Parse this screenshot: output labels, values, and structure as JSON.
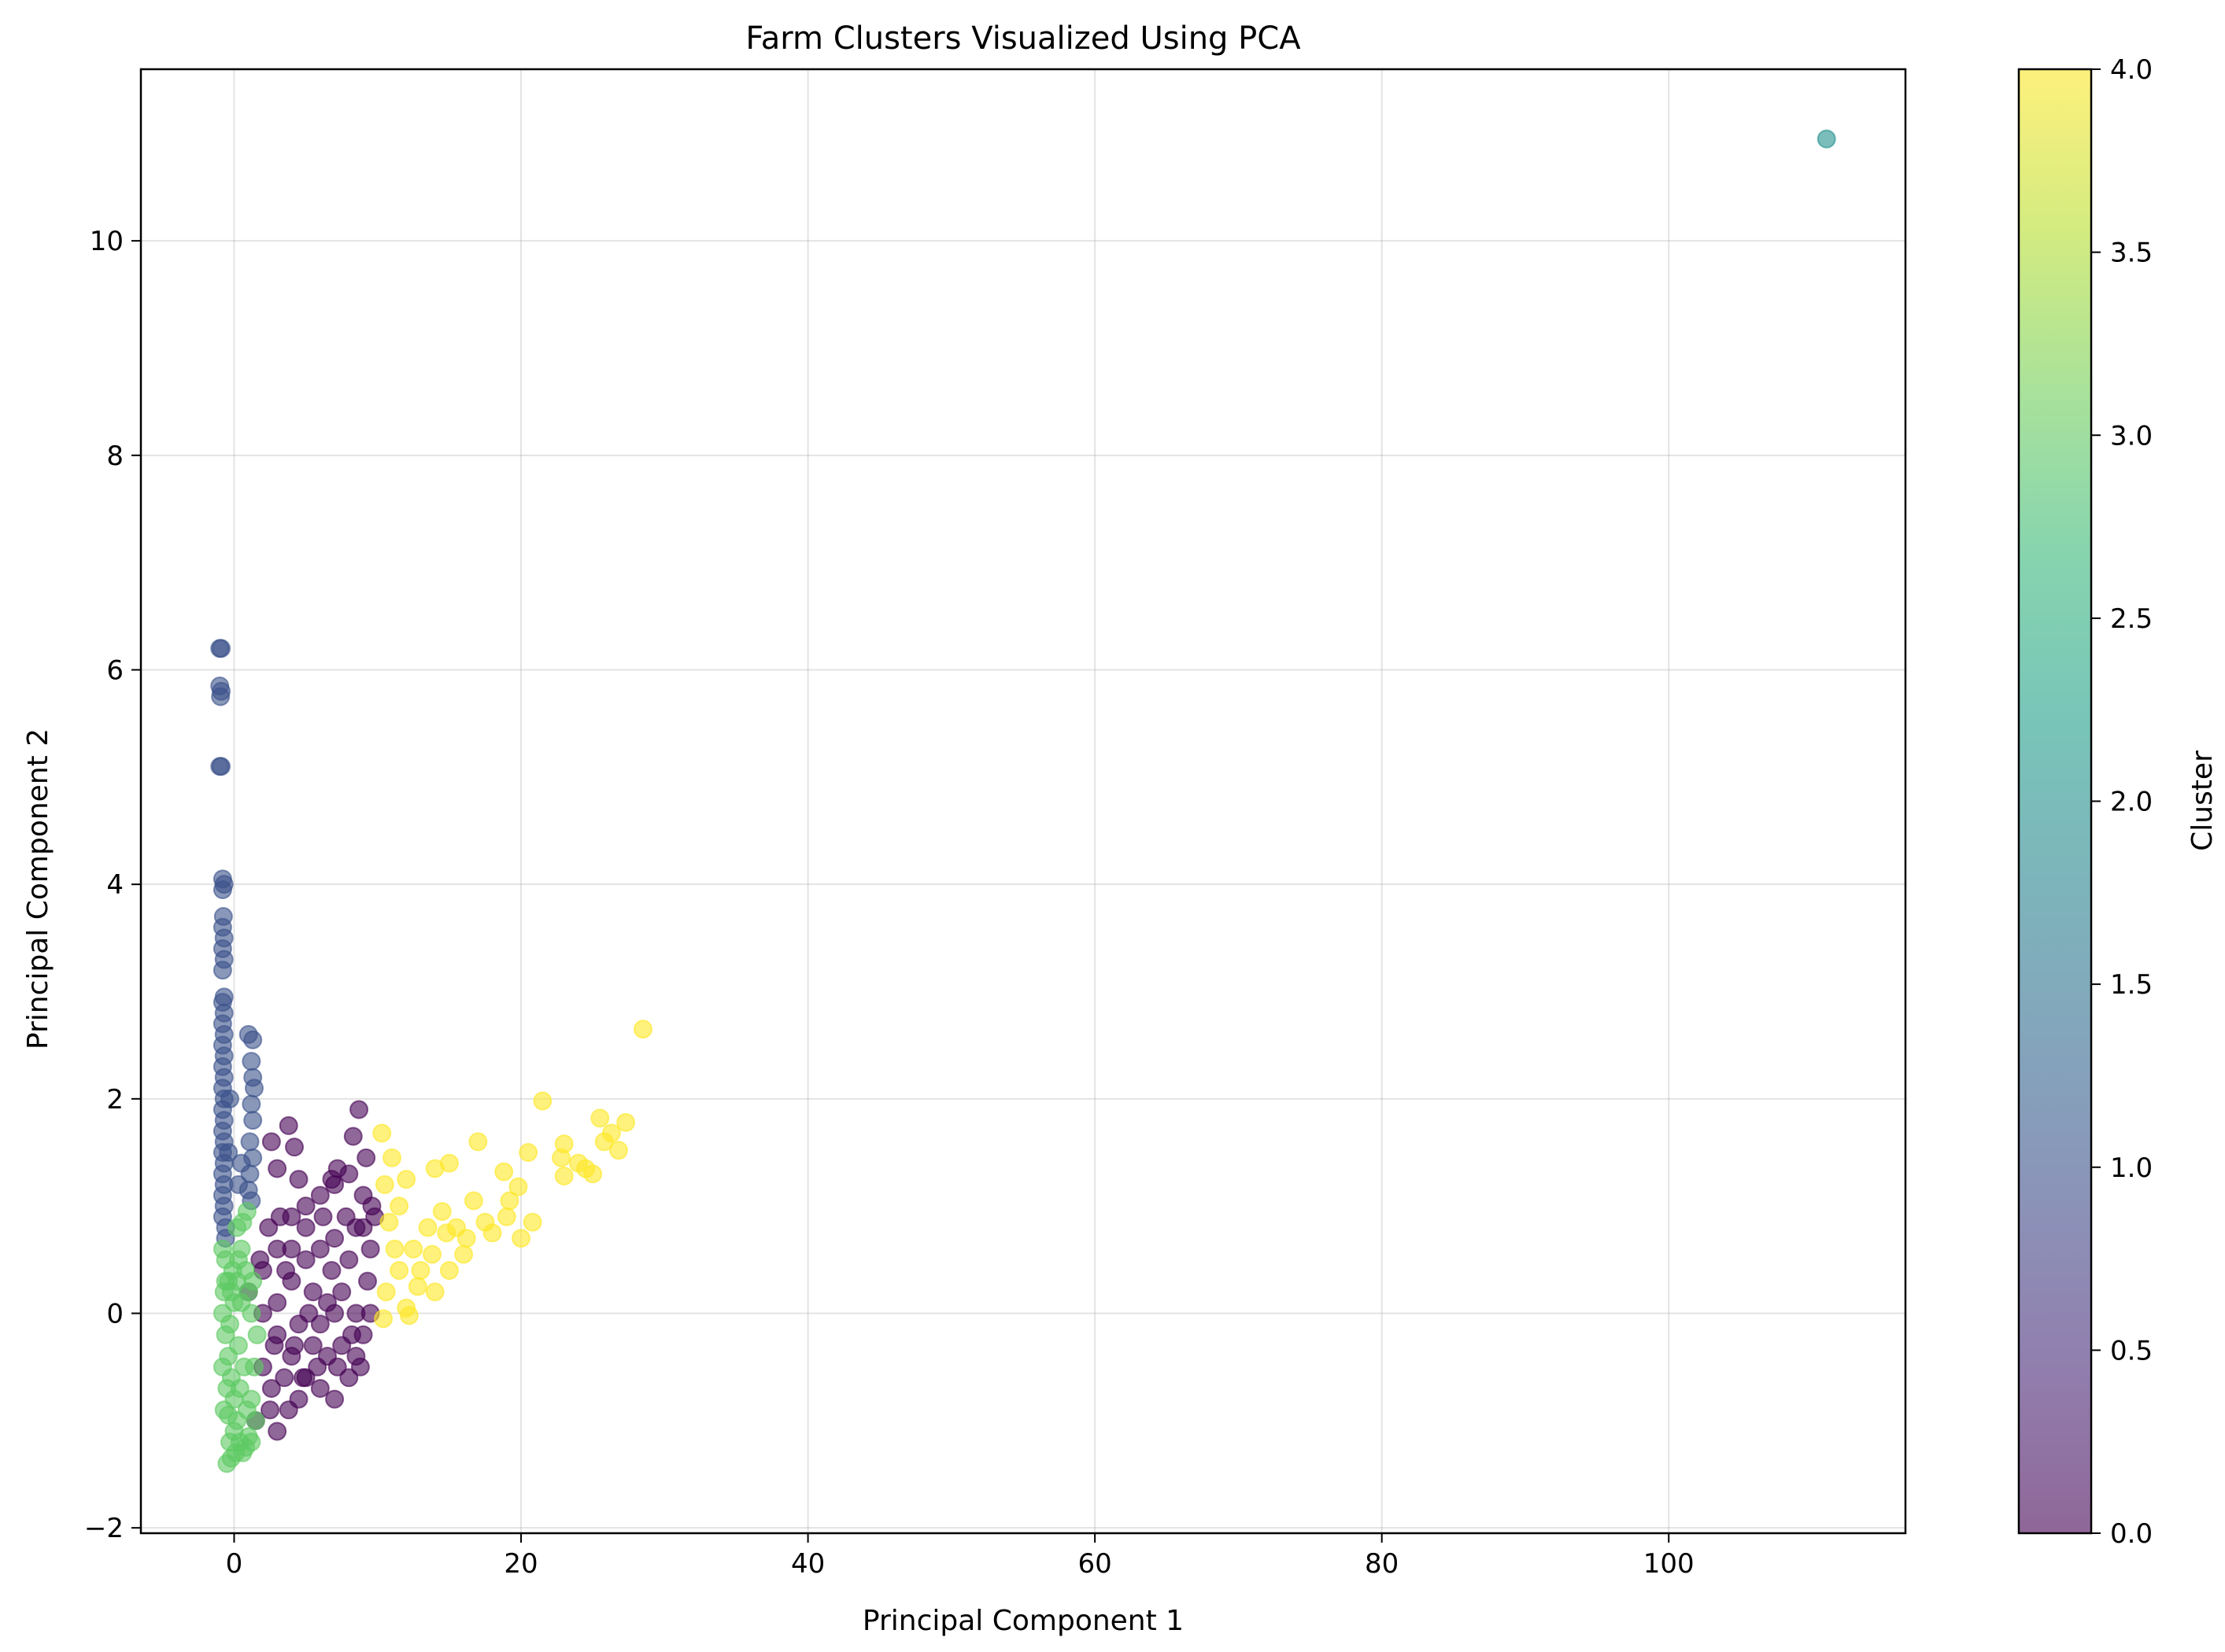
{
  "chart_data": {
    "type": "scatter",
    "title": "Farm Clusters Visualized Using PCA",
    "xlabel": "Principal Component 1",
    "ylabel": "Principal Component 2",
    "xlim": [
      -6.5,
      116.5
    ],
    "ylim": [
      -2.05,
      11.6
    ],
    "xticks": [
      0,
      20,
      40,
      60,
      80,
      100
    ],
    "xtick_labels": [
      "0",
      "20",
      "40",
      "60",
      "80",
      "100"
    ],
    "yticks": [
      -2,
      0,
      2,
      4,
      6,
      8,
      10
    ],
    "ytick_labels": [
      "−2",
      "0",
      "2",
      "4",
      "6",
      "8",
      "10"
    ],
    "grid": true,
    "point_alpha": 0.6,
    "colorbar": {
      "label": "Cluster",
      "range": [
        0.0,
        4.0
      ],
      "ticks": [
        0.0,
        0.5,
        1.0,
        1.5,
        2.0,
        2.5,
        3.0,
        3.5,
        4.0
      ],
      "tick_labels": [
        "0.0",
        "0.5",
        "1.0",
        "1.5",
        "2.0",
        "2.5",
        "3.0",
        "3.5",
        "4.0"
      ],
      "colormap": "viridis",
      "stops": [
        "#440154",
        "#482878",
        "#3e4989",
        "#31688e",
        "#26828e",
        "#1f9e89",
        "#35b779",
        "#6ece58",
        "#b5de2b",
        "#fde725"
      ]
    },
    "series": [
      {
        "cluster": 0,
        "color": "#440154",
        "points": [
          [
            1,
            0.2
          ],
          [
            2,
            0.4
          ],
          [
            3,
            0.6
          ],
          [
            4,
            0.9
          ],
          [
            5,
            1.0
          ],
          [
            6,
            1.1
          ],
          [
            7,
            1.2
          ],
          [
            8,
            1.3
          ],
          [
            9,
            1.1
          ],
          [
            8.5,
            0.8
          ],
          [
            3.8,
            1.75
          ],
          [
            4.2,
            1.55
          ],
          [
            4.5,
            1.25
          ],
          [
            2.6,
            1.6
          ],
          [
            8.3,
            1.65
          ],
          [
            7.2,
            1.35
          ],
          [
            6.8,
            1.25
          ],
          [
            8.7,
            1.9
          ],
          [
            9.2,
            1.45
          ],
          [
            3,
            1.35
          ],
          [
            2,
            0
          ],
          [
            3,
            -0.2
          ],
          [
            4,
            -0.4
          ],
          [
            5,
            -0.6
          ],
          [
            6,
            -0.7
          ],
          [
            7,
            -0.8
          ],
          [
            8,
            -0.6
          ],
          [
            8.5,
            -0.4
          ],
          [
            9,
            -0.2
          ],
          [
            9.5,
            0
          ],
          [
            3,
            0.1
          ],
          [
            4,
            0.3
          ],
          [
            5,
            0.5
          ],
          [
            6,
            0.6
          ],
          [
            7,
            0.7
          ],
          [
            8,
            0.5
          ],
          [
            9,
            0.8
          ],
          [
            9.5,
            0.6
          ],
          [
            5.5,
            0.2
          ],
          [
            6.5,
            0.1
          ],
          [
            7.5,
            0.2
          ],
          [
            8.5,
            0
          ],
          [
            4.5,
            -0.1
          ],
          [
            5.5,
            -0.3
          ],
          [
            6.5,
            -0.4
          ],
          [
            7.5,
            -0.3
          ],
          [
            3.5,
            -0.6
          ],
          [
            4.5,
            -0.8
          ],
          [
            2.5,
            -0.9
          ],
          [
            3,
            -1.1
          ],
          [
            1.5,
            -1.0
          ],
          [
            2,
            -0.5
          ],
          [
            6,
            -0.1
          ],
          [
            7,
            0
          ],
          [
            8.8,
            -0.5
          ],
          [
            9.3,
            0.3
          ],
          [
            9.8,
            0.9
          ],
          [
            5,
            0.8
          ],
          [
            4,
            0.6
          ],
          [
            3.2,
            0.9
          ],
          [
            2.8,
            -0.3
          ],
          [
            1.8,
            0.5
          ],
          [
            9.6,
            1.0
          ],
          [
            6.2,
            0.9
          ],
          [
            7.8,
            0.9
          ],
          [
            5.8,
            -0.5
          ],
          [
            4.8,
            -0.6
          ],
          [
            8.2,
            -0.2
          ],
          [
            3.6,
            0.4
          ],
          [
            2.4,
            0.8
          ],
          [
            6.8,
            0.4
          ],
          [
            5.2,
            0.0
          ],
          [
            4.2,
            -0.3
          ],
          [
            7.2,
            -0.5
          ],
          [
            3.8,
            -0.9
          ],
          [
            2.6,
            -0.7
          ]
        ]
      },
      {
        "cluster": 1,
        "color": "#3b528b",
        "points": [
          [
            -1,
            6.2
          ],
          [
            -0.9,
            6.2
          ],
          [
            -1,
            5.85
          ],
          [
            -0.9,
            5.8
          ],
          [
            -0.95,
            5.75
          ],
          [
            -1,
            5.1
          ],
          [
            -0.9,
            5.1
          ],
          [
            -0.8,
            4.05
          ],
          [
            -0.7,
            4.0
          ],
          [
            -0.8,
            3.95
          ],
          [
            -0.75,
            3.7
          ],
          [
            -0.8,
            3.6
          ],
          [
            -0.7,
            3.5
          ],
          [
            -0.8,
            3.4
          ],
          [
            -0.7,
            3.3
          ],
          [
            -0.8,
            3.2
          ],
          [
            -0.7,
            2.95
          ],
          [
            -0.8,
            2.9
          ],
          [
            -0.7,
            2.8
          ],
          [
            -0.8,
            2.7
          ],
          [
            -0.7,
            2.6
          ],
          [
            -0.8,
            2.5
          ],
          [
            -0.7,
            2.4
          ],
          [
            -0.8,
            2.3
          ],
          [
            -0.7,
            2.2
          ],
          [
            -0.8,
            2.1
          ],
          [
            -0.7,
            2.0
          ],
          [
            -0.8,
            1.9
          ],
          [
            -0.7,
            1.8
          ],
          [
            -0.8,
            1.7
          ],
          [
            -0.7,
            1.6
          ],
          [
            -0.8,
            1.5
          ],
          [
            -0.7,
            1.4
          ],
          [
            -0.8,
            1.3
          ],
          [
            -0.7,
            1.2
          ],
          [
            -0.8,
            1.1
          ],
          [
            -0.7,
            1.0
          ],
          [
            -0.8,
            0.9
          ],
          [
            -0.6,
            0.8
          ],
          [
            -0.6,
            0.7
          ],
          [
            1,
            2.6
          ],
          [
            1.3,
            2.55
          ],
          [
            1.2,
            2.35
          ],
          [
            1.3,
            2.2
          ],
          [
            1.4,
            2.1
          ],
          [
            1.2,
            1.95
          ],
          [
            1.3,
            1.8
          ],
          [
            1.1,
            1.6
          ],
          [
            1.3,
            1.45
          ],
          [
            1.1,
            1.3
          ],
          [
            1.0,
            1.15
          ],
          [
            1.2,
            1.05
          ],
          [
            0.5,
            1.4
          ],
          [
            0.3,
            1.2
          ],
          [
            -0.3,
            2.0
          ],
          [
            -0.4,
            1.5
          ]
        ]
      },
      {
        "cluster": 2,
        "color": "#21918c",
        "points": [
          [
            111,
            10.95
          ]
        ]
      },
      {
        "cluster": 3,
        "color": "#5ec962",
        "points": [
          [
            -0.8,
            0.6
          ],
          [
            -0.6,
            0.5
          ],
          [
            -0.4,
            0.3
          ],
          [
            -0.2,
            0.2
          ],
          [
            0,
            0.1
          ],
          [
            0.2,
            0.8
          ],
          [
            0.5,
            0.6
          ],
          [
            0.8,
            0.4
          ],
          [
            1,
            0.2
          ],
          [
            1.2,
            0
          ],
          [
            -0.8,
            0
          ],
          [
            -0.6,
            -0.2
          ],
          [
            -0.4,
            -0.4
          ],
          [
            -0.2,
            -0.6
          ],
          [
            0,
            -0.8
          ],
          [
            0.2,
            -1.0
          ],
          [
            0.4,
            -1.2
          ],
          [
            0.6,
            -1.3
          ],
          [
            0.8,
            -1.25
          ],
          [
            1.0,
            -1.15
          ],
          [
            -0.5,
            -1.4
          ],
          [
            -0.2,
            -1.35
          ],
          [
            0.1,
            -1.3
          ],
          [
            -0.7,
            -0.9
          ],
          [
            -0.5,
            -0.7
          ],
          [
            1.2,
            -0.8
          ],
          [
            1.4,
            -0.5
          ],
          [
            1.5,
            -1.0
          ],
          [
            1.2,
            -1.2
          ],
          [
            0.9,
            0.95
          ],
          [
            0.6,
            0.85
          ],
          [
            0.3,
            0.5
          ],
          [
            -0.1,
            0.4
          ],
          [
            -0.3,
            -0.1
          ],
          [
            0.3,
            -0.3
          ],
          [
            0.7,
            -0.5
          ],
          [
            0.5,
            0.1
          ],
          [
            -0.6,
            0.3
          ],
          [
            1.3,
            0.3
          ],
          [
            0.0,
            -1.1
          ],
          [
            -0.3,
            -1.2
          ],
          [
            0.9,
            -0.9
          ],
          [
            -0.8,
            -0.5
          ],
          [
            -0.7,
            0.2
          ],
          [
            1.6,
            -0.2
          ],
          [
            0.4,
            -0.7
          ],
          [
            -0.4,
            -0.95
          ],
          [
            0.2,
            0.3
          ]
        ]
      },
      {
        "cluster": 4,
        "color": "#fde725",
        "points": [
          [
            28.5,
            2.65
          ],
          [
            21.5,
            1.98
          ],
          [
            25.5,
            1.82
          ],
          [
            27.3,
            1.78
          ],
          [
            26.3,
            1.68
          ],
          [
            25.8,
            1.6
          ],
          [
            26.8,
            1.52
          ],
          [
            23,
            1.58
          ],
          [
            24,
            1.4
          ],
          [
            20.5,
            1.5
          ],
          [
            23,
            1.28
          ],
          [
            25,
            1.3
          ],
          [
            24.5,
            1.35
          ],
          [
            17,
            1.6
          ],
          [
            18.8,
            1.32
          ],
          [
            19.8,
            1.18
          ],
          [
            15,
            1.4
          ],
          [
            14,
            1.35
          ],
          [
            12,
            1.25
          ],
          [
            10.3,
            1.68
          ],
          [
            11,
            1.45
          ],
          [
            10.5,
            1.2
          ],
          [
            11.5,
            1.0
          ],
          [
            10.8,
            0.85
          ],
          [
            13.5,
            0.8
          ],
          [
            12.5,
            0.6
          ],
          [
            11.5,
            0.4
          ],
          [
            10.6,
            0.2
          ],
          [
            12,
            0.05
          ],
          [
            14.5,
            0.95
          ],
          [
            15.5,
            0.8
          ],
          [
            16,
            0.55
          ],
          [
            15,
            0.4
          ],
          [
            14,
            0.2
          ],
          [
            13,
            0.4
          ],
          [
            16.7,
            1.05
          ],
          [
            18,
            0.75
          ],
          [
            19,
            0.9
          ],
          [
            20,
            0.7
          ],
          [
            20.8,
            0.85
          ],
          [
            12.8,
            0.25
          ],
          [
            11.2,
            0.6
          ],
          [
            10.4,
            -0.05
          ],
          [
            12.2,
            -0.02
          ],
          [
            13.8,
            0.55
          ],
          [
            17.5,
            0.85
          ],
          [
            19.2,
            1.05
          ],
          [
            22.8,
            1.45
          ],
          [
            14.8,
            0.75
          ],
          [
            16.2,
            0.7
          ]
        ]
      }
    ]
  }
}
